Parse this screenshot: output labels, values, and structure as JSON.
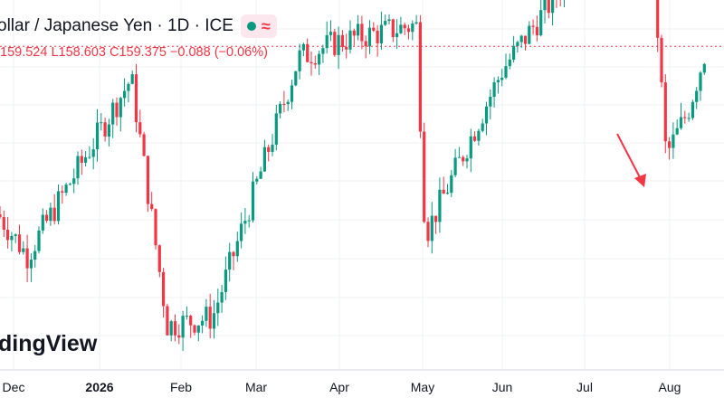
{
  "header": {
    "title": "ollar / Japanese Yen · 1D · ICE",
    "status_icon": "market-status-dot",
    "status_color": "#089981",
    "indicator_icon": "approx-wave-icon",
    "indicator_color": "#f23645"
  },
  "ohlc": {
    "h_value": "159.524",
    "l_label": "L",
    "l_value": "158.603",
    "c_label": "C",
    "c_value": "159.375",
    "change": "−0.088 (−0.06%)"
  },
  "brand": "dingView",
  "chart_data": {
    "type": "candlestick",
    "interval": "1D",
    "x_ticks": [
      "Dec",
      "2026",
      "Feb",
      "Mar",
      "Apr",
      "May",
      "Jun",
      "Jul",
      "Aug"
    ],
    "last_close": 159.375,
    "y_range": [
      151.5,
      160.5
    ],
    "grid": true,
    "up_color": "#089981",
    "down_color": "#f23645",
    "annotation": {
      "type": "arrow",
      "color": "#f23645",
      "direction": "down-right"
    },
    "key_points": [
      {
        "date": "Dec (start)",
        "close": 155.3
      },
      {
        "date": "Dec low",
        "close": 154.3
      },
      {
        "date": "mid-Jan high",
        "close": 158.6
      },
      {
        "date": "late-Jan low",
        "close": 152.6
      },
      {
        "date": "Feb low",
        "close": 152.8
      },
      {
        "date": "Mar high",
        "close": 159.1
      },
      {
        "date": "early-Apr high",
        "close": 159.5
      },
      {
        "date": "late-Apr high",
        "close": 159.9
      },
      {
        "date": "May low",
        "close": 154.8
      },
      {
        "date": "Jun",
        "close": 158.8
      },
      {
        "date": "early-Jul high",
        "close": 161.6
      },
      {
        "date": "Jul high",
        "close": 163.5
      },
      {
        "date": "late-Jul drop",
        "close": 156.7
      },
      {
        "date": "early-Aug",
        "close": 157.8
      },
      {
        "date": "Aug (last)",
        "close": 159.375
      }
    ]
  }
}
